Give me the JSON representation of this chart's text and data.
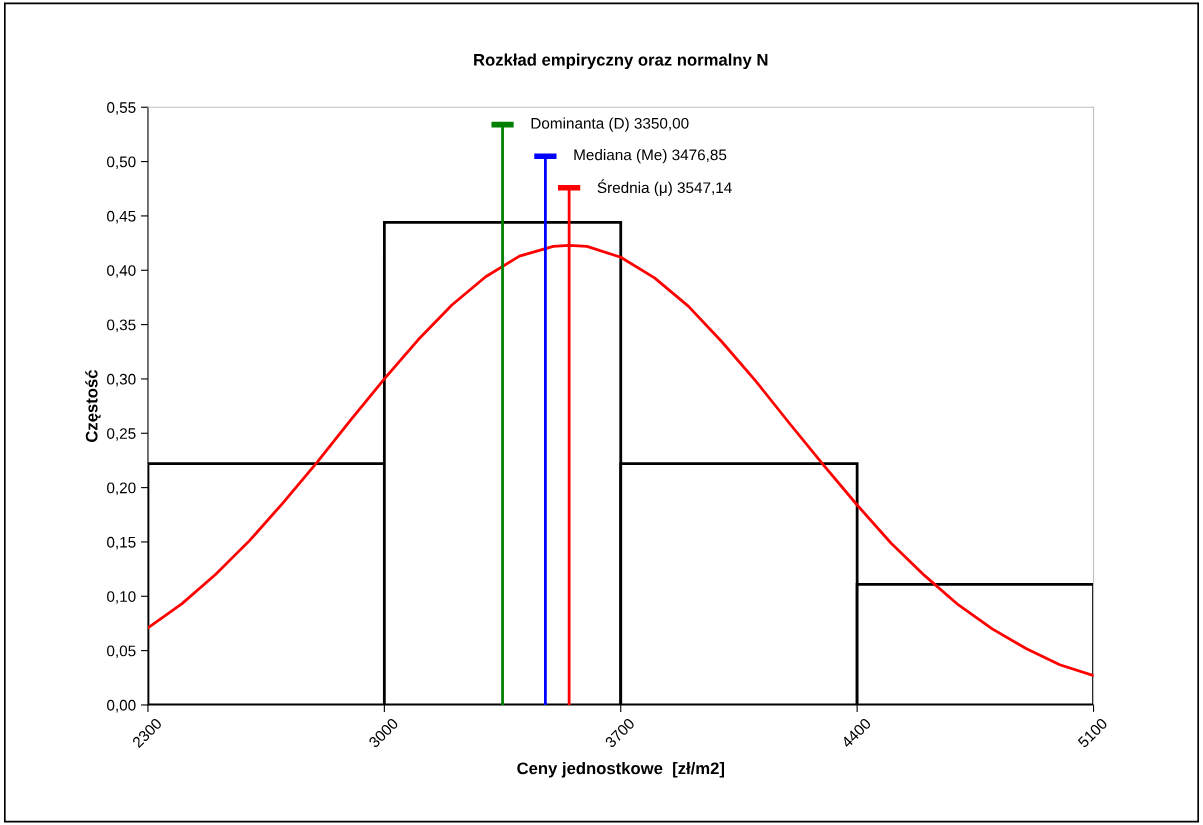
{
  "chart_data": {
    "type": "histogram",
    "title": "Rozkład empiryczny oraz normalny N",
    "xlabel": "Ceny jednostkowe  [zł/m2]",
    "ylabel": "Częstość",
    "bins": [
      2300,
      3000,
      3700,
      4400,
      5100
    ],
    "values": [
      0.222,
      0.444,
      0.222,
      0.111
    ],
    "color": "#000000",
    "series": [
      {
        "type": "line",
        "color": "#ff0000",
        "x": [
          2300,
          2400,
          2500,
          2600,
          2700,
          2800,
          2900,
          3000,
          3100,
          3200,
          3300,
          3400,
          3500,
          3547,
          3600,
          3700,
          3800,
          3900,
          4000,
          4100,
          4200,
          4300,
          4400,
          4500,
          4600,
          4700,
          4800,
          4900,
          5000,
          5100
        ],
        "values": [
          0.071,
          0.093,
          0.12,
          0.151,
          0.186,
          0.223,
          0.262,
          0.3,
          0.336,
          0.368,
          0.394,
          0.413,
          0.422,
          0.423,
          0.422,
          0.412,
          0.393,
          0.367,
          0.334,
          0.298,
          0.259,
          0.221,
          0.184,
          0.149,
          0.119,
          0.092,
          0.07,
          0.052,
          0.037,
          0.027
        ]
      },
      {
        "type": "line",
        "name": "Dominanta (D) 3350,00",
        "color": "#008000",
        "x": [
          3350,
          3350
        ],
        "values": [
          0,
          0.534
        ]
      },
      {
        "type": "line",
        "name": "Mediana (Me) 3476,85",
        "color": "#0000ff",
        "x": [
          3476.85,
          3476.85
        ],
        "values": [
          0,
          0.505
        ]
      },
      {
        "type": "line",
        "name": "Średnia (μ) 3547,14",
        "color": "#ff0000",
        "x": [
          3547.14,
          3547.14
        ],
        "values": [
          0,
          0.476
        ]
      }
    ],
    "xlim": [
      2300,
      5100
    ],
    "xticks": [
      2300,
      3000,
      3700,
      4400,
      5100
    ],
    "ylim": [
      0,
      0.55
    ],
    "yticks": [
      {
        "value": 0,
        "label": "0,00"
      },
      {
        "value": 0.05,
        "label": "0,05"
      },
      {
        "value": 0.1,
        "label": "0,10"
      },
      {
        "value": 0.15,
        "label": "0,15"
      },
      {
        "value": 0.2,
        "label": "0,20"
      },
      {
        "value": 0.25,
        "label": "0,25"
      },
      {
        "value": 0.3,
        "label": "0,30"
      },
      {
        "value": 0.35,
        "label": "0,35"
      },
      {
        "value": 0.4,
        "label": "0,40"
      },
      {
        "value": 0.45,
        "label": "0,45"
      },
      {
        "value": 0.5,
        "label": "0,50"
      },
      {
        "value": 0.55,
        "label": "0,55"
      }
    ],
    "grid": false,
    "legend": "top"
  }
}
